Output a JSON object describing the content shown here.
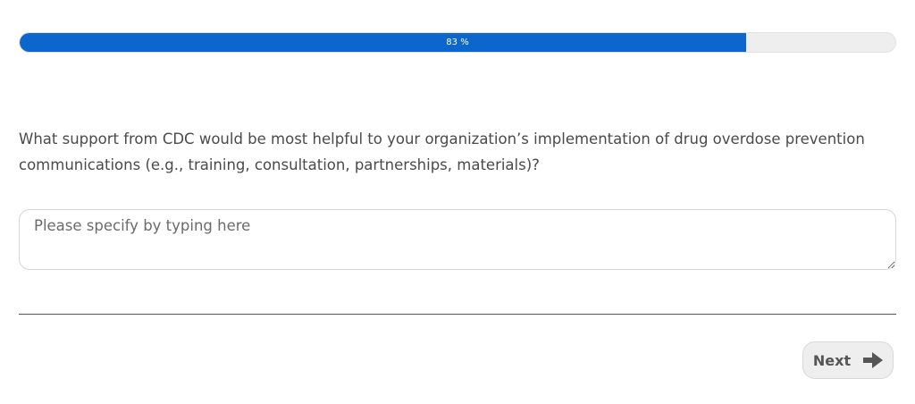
{
  "progress": {
    "percent": 83,
    "label": "83 %",
    "fill_color": "#0d66cb"
  },
  "question": {
    "text": "What support from CDC would be most helpful to your organization’s implementation of drug overdose prevention communications (e.g., training, consultation, partnerships, materials)?"
  },
  "answer": {
    "value": "",
    "placeholder": "Please specify by typing here"
  },
  "navigation": {
    "next_label": "Next",
    "next_icon": "arrow-right-icon"
  }
}
